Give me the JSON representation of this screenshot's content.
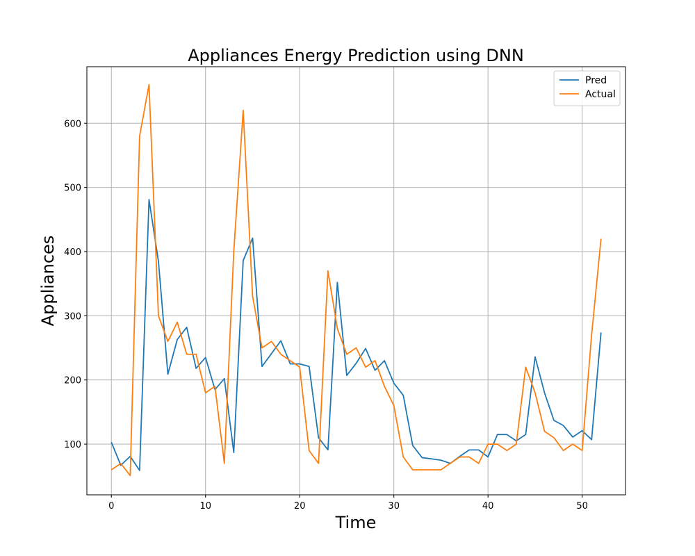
{
  "chart_data": {
    "type": "line",
    "title": "Appliances Energy Prediction using DNN",
    "xlabel": "Time",
    "ylabel": "Appliances",
    "xlim": [
      -2.6,
      54.6
    ],
    "ylim": [
      21,
      688
    ],
    "xticks": [
      0,
      10,
      20,
      30,
      40,
      50
    ],
    "yticks": [
      100,
      200,
      300,
      400,
      500,
      600
    ],
    "grid": true,
    "legend_position": "top-right",
    "x": [
      0,
      1,
      2,
      3,
      4,
      5,
      6,
      7,
      8,
      9,
      10,
      11,
      12,
      13,
      14,
      15,
      16,
      17,
      18,
      19,
      20,
      21,
      22,
      23,
      24,
      25,
      26,
      27,
      28,
      29,
      30,
      31,
      32,
      33,
      34,
      35,
      36,
      37,
      38,
      39,
      40,
      41,
      42,
      43,
      44,
      45,
      46,
      47,
      48,
      49,
      50,
      51,
      52
    ],
    "series": [
      {
        "name": "Pred",
        "color": "#1f77b4",
        "values": [
          103,
          67,
          81,
          59,
          481,
          385,
          209,
          263,
          282,
          218,
          235,
          185,
          202,
          87,
          386,
          421,
          221,
          241,
          261,
          225,
          225,
          221,
          110,
          91,
          352,
          207,
          226,
          249,
          215,
          230,
          195,
          176,
          98,
          79,
          77,
          75,
          70,
          81,
          91,
          91,
          80,
          115,
          115,
          105,
          115,
          236,
          180,
          137,
          129,
          111,
          121,
          107,
          274
        ]
      },
      {
        "name": "Actual",
        "color": "#ff7f0e",
        "values": [
          60,
          70,
          51,
          580,
          660,
          300,
          260,
          290,
          240,
          240,
          180,
          190,
          70,
          400,
          620,
          330,
          250,
          260,
          240,
          230,
          220,
          90,
          70,
          370,
          280,
          240,
          250,
          220,
          230,
          190,
          160,
          80,
          60,
          60,
          60,
          60,
          70,
          80,
          80,
          70,
          100,
          100,
          90,
          100,
          220,
          180,
          120,
          110,
          90,
          100,
          90,
          270,
          420
        ]
      }
    ]
  }
}
